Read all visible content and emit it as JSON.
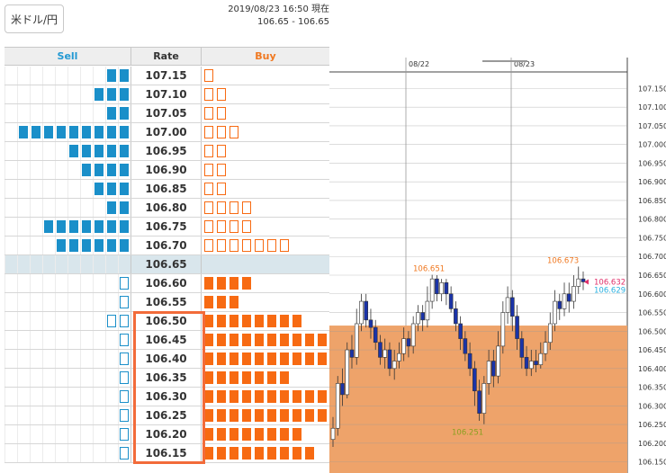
{
  "pair_button": "米ドル/円",
  "timestamp": {
    "line1": "2019/08/23 16:50 現在",
    "line2": "106.65 - 106.65"
  },
  "orderbook": {
    "headers": {
      "sell": "Sell",
      "rate": "Rate",
      "buy": "Buy"
    },
    "current_rate": "106.65",
    "rows": [
      {
        "rate": "107.15",
        "sell": 2,
        "sell_open": 0,
        "buy": 0,
        "buy_open": 1
      },
      {
        "rate": "107.10",
        "sell": 3,
        "sell_open": 0,
        "buy": 0,
        "buy_open": 2
      },
      {
        "rate": "107.05",
        "sell": 2,
        "sell_open": 0,
        "buy": 0,
        "buy_open": 2
      },
      {
        "rate": "107.00",
        "sell": 9,
        "sell_open": 0,
        "buy": 0,
        "buy_open": 3
      },
      {
        "rate": "106.95",
        "sell": 5,
        "sell_open": 0,
        "buy": 0,
        "buy_open": 2
      },
      {
        "rate": "106.90",
        "sell": 4,
        "sell_open": 0,
        "buy": 0,
        "buy_open": 2
      },
      {
        "rate": "106.85",
        "sell": 3,
        "sell_open": 0,
        "buy": 0,
        "buy_open": 2
      },
      {
        "rate": "106.80",
        "sell": 2,
        "sell_open": 0,
        "buy": 0,
        "buy_open": 4
      },
      {
        "rate": "106.75",
        "sell": 7,
        "sell_open": 0,
        "buy": 0,
        "buy_open": 4
      },
      {
        "rate": "106.70",
        "sell": 6,
        "sell_open": 0,
        "buy": 0,
        "buy_open": 7
      },
      {
        "rate": "106.65",
        "sell": 0,
        "sell_open": 0,
        "buy": 0,
        "buy_open": 0
      },
      {
        "rate": "106.60",
        "sell": 0,
        "sell_open": 1,
        "buy": 4,
        "buy_open": 0
      },
      {
        "rate": "106.55",
        "sell": 0,
        "sell_open": 1,
        "buy": 3,
        "buy_open": 0
      },
      {
        "rate": "106.50",
        "sell": 0,
        "sell_open": 2,
        "buy": 8,
        "buy_open": 0
      },
      {
        "rate": "106.45",
        "sell": 0,
        "sell_open": 1,
        "buy": 10,
        "buy_open": 0
      },
      {
        "rate": "106.40",
        "sell": 0,
        "sell_open": 1,
        "buy": 10,
        "buy_open": 0
      },
      {
        "rate": "106.35",
        "sell": 0,
        "sell_open": 1,
        "buy": 7,
        "buy_open": 0
      },
      {
        "rate": "106.30",
        "sell": 0,
        "sell_open": 1,
        "buy": 10,
        "buy_open": 0
      },
      {
        "rate": "106.25",
        "sell": 0,
        "sell_open": 1,
        "buy": 10,
        "buy_open": 0
      },
      {
        "rate": "106.20",
        "sell": 0,
        "sell_open": 1,
        "buy": 8,
        "buy_open": 0
      },
      {
        "rate": "106.15",
        "sell": 0,
        "sell_open": 1,
        "buy": 9,
        "buy_open": 0
      }
    ]
  },
  "colors": {
    "sell": "#1a8fc9",
    "buy": "#f76a12",
    "highlight": "#f26b3a",
    "fill": "#eea36a"
  },
  "chart_data": {
    "type": "candlestick",
    "x_labels": [
      "08/22",
      "08/23"
    ],
    "y_ticks": [
      "107.150",
      "107.100",
      "107.050",
      "107.000",
      "106.950",
      "106.900",
      "106.850",
      "106.800",
      "106.750",
      "106.700",
      "106.650",
      "106.600",
      "106.550",
      "106.500",
      "106.450",
      "106.400",
      "106.350",
      "106.300",
      "106.250",
      "106.200",
      "106.150"
    ],
    "ylim": [
      106.15,
      107.15
    ],
    "filled_region_top": 106.515,
    "annotations": [
      {
        "text": "106.651",
        "value": 106.651,
        "color": "#f07820"
      },
      {
        "text": "106.251",
        "value": 106.251,
        "color": "#8aa020"
      },
      {
        "text": "106.673",
        "value": 106.673,
        "color": "#f07820"
      },
      {
        "text": "106.632",
        "value": 106.632,
        "color": "#e0306a"
      },
      {
        "text": "106.629",
        "value": 106.629,
        "color": "#2ab0e0"
      }
    ],
    "candles": [
      [
        106.21,
        106.24,
        106.19,
        106.27
      ],
      [
        106.24,
        106.36,
        106.22,
        106.38
      ],
      [
        106.36,
        106.33,
        106.3,
        106.4
      ],
      [
        106.33,
        106.45,
        106.32,
        106.47
      ],
      [
        106.45,
        106.43,
        106.4,
        106.49
      ],
      [
        106.43,
        106.52,
        106.41,
        106.56
      ],
      [
        106.52,
        106.58,
        106.5,
        106.6
      ],
      [
        106.58,
        106.53,
        106.51,
        106.6
      ],
      [
        106.53,
        106.51,
        106.48,
        106.56
      ],
      [
        106.51,
        106.47,
        106.45,
        106.53
      ],
      [
        106.47,
        106.43,
        106.41,
        106.49
      ],
      [
        106.43,
        106.45,
        106.4,
        106.48
      ],
      [
        106.45,
        106.4,
        106.38,
        106.47
      ],
      [
        106.4,
        106.42,
        106.37,
        106.45
      ],
      [
        106.42,
        106.44,
        106.4,
        106.47
      ],
      [
        106.44,
        106.48,
        106.42,
        106.51
      ],
      [
        106.48,
        106.46,
        106.43,
        106.5
      ],
      [
        106.46,
        106.52,
        106.44,
        106.54
      ],
      [
        106.52,
        106.55,
        106.5,
        106.57
      ],
      [
        106.55,
        106.53,
        106.5,
        106.57
      ],
      [
        106.53,
        106.58,
        106.51,
        106.62
      ],
      [
        106.58,
        106.64,
        106.56,
        106.651
      ],
      [
        106.64,
        106.6,
        106.58,
        106.65
      ],
      [
        106.6,
        106.63,
        106.58,
        106.64
      ],
      [
        106.63,
        106.6,
        106.57,
        106.64
      ],
      [
        106.6,
        106.56,
        106.55,
        106.62
      ],
      [
        106.56,
        106.52,
        106.5,
        106.58
      ],
      [
        106.52,
        106.48,
        106.45,
        106.54
      ],
      [
        106.48,
        106.44,
        106.42,
        106.5
      ],
      [
        106.44,
        106.4,
        106.38,
        106.47
      ],
      [
        106.4,
        106.34,
        106.3,
        106.42
      ],
      [
        106.34,
        106.28,
        106.26,
        106.37
      ],
      [
        106.28,
        106.36,
        106.251,
        106.38
      ],
      [
        106.36,
        106.42,
        106.33,
        106.45
      ],
      [
        106.42,
        106.38,
        106.35,
        106.45
      ],
      [
        106.38,
        106.46,
        106.36,
        106.5
      ],
      [
        106.46,
        106.55,
        106.44,
        106.58
      ],
      [
        106.55,
        106.59,
        106.52,
        106.62
      ],
      [
        106.59,
        106.54,
        106.5,
        106.61
      ],
      [
        106.54,
        106.48,
        106.45,
        106.57
      ],
      [
        106.48,
        106.43,
        106.4,
        106.5
      ],
      [
        106.43,
        106.4,
        106.38,
        106.46
      ],
      [
        106.4,
        106.42,
        106.38,
        106.45
      ],
      [
        106.42,
        106.41,
        106.39,
        106.45
      ],
      [
        106.41,
        106.44,
        106.4,
        106.47
      ],
      [
        106.44,
        106.47,
        106.42,
        106.5
      ],
      [
        106.47,
        106.52,
        106.45,
        106.55
      ],
      [
        106.52,
        106.58,
        106.5,
        106.61
      ],
      [
        106.58,
        106.56,
        106.53,
        106.6
      ],
      [
        106.56,
        106.6,
        106.54,
        106.63
      ],
      [
        106.6,
        106.58,
        106.55,
        106.63
      ],
      [
        106.58,
        106.62,
        106.56,
        106.65
      ],
      [
        106.62,
        106.64,
        106.6,
        106.673
      ],
      [
        106.64,
        106.632,
        106.61,
        106.66
      ]
    ]
  }
}
